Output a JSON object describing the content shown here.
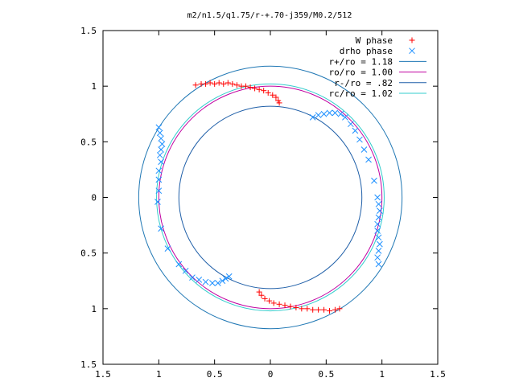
{
  "chart_data": {
    "type": "scatter",
    "title": "m2/n1.5/q1.75/r-+.70-j359/M0.2/512",
    "xlim": [
      -1.5,
      1.5
    ],
    "ylim": [
      -1.5,
      1.5
    ],
    "x_ticks": [
      -1.5,
      -1,
      -0.5,
      0,
      0.5,
      1,
      1.5
    ],
    "y_ticks": [
      -1.5,
      -1,
      -0.5,
      0,
      0.5,
      1,
      1.5
    ],
    "x_tick_labels": [
      "1.5",
      "1",
      "0.5",
      "0",
      "0.5",
      "1",
      "1.5"
    ],
    "y_tick_labels": [
      "1.5",
      "1",
      "0.5",
      "0",
      "0.5",
      "1",
      "1.5"
    ],
    "grid": false,
    "legend_position": "top-right",
    "series": [
      {
        "name": "W phase",
        "marker": "+",
        "color": "#ff0000",
        "points": [
          [
            -0.67,
            1.01
          ],
          [
            -0.62,
            1.02
          ],
          [
            -0.58,
            1.02
          ],
          [
            -0.54,
            1.03
          ],
          [
            -0.5,
            1.02
          ],
          [
            -0.46,
            1.03
          ],
          [
            -0.42,
            1.02
          ],
          [
            -0.38,
            1.03
          ],
          [
            -0.34,
            1.02
          ],
          [
            -0.3,
            1.01
          ],
          [
            -0.26,
            1.0
          ],
          [
            -0.22,
            1.0
          ],
          [
            -0.18,
            0.99
          ],
          [
            -0.14,
            0.98
          ],
          [
            -0.1,
            0.97
          ],
          [
            -0.06,
            0.96
          ],
          [
            -0.02,
            0.94
          ],
          [
            0.02,
            0.92
          ],
          [
            0.05,
            0.9
          ],
          [
            0.07,
            0.87
          ],
          [
            0.08,
            0.85
          ],
          [
            -0.1,
            -0.85
          ],
          [
            -0.08,
            -0.88
          ],
          [
            -0.05,
            -0.91
          ],
          [
            -0.01,
            -0.93
          ],
          [
            0.03,
            -0.95
          ],
          [
            0.08,
            -0.96
          ],
          [
            0.13,
            -0.97
          ],
          [
            0.18,
            -0.98
          ],
          [
            0.23,
            -0.99
          ],
          [
            0.28,
            -1.0
          ],
          [
            0.33,
            -1.0
          ],
          [
            0.38,
            -1.01
          ],
          [
            0.43,
            -1.01
          ],
          [
            0.48,
            -1.01
          ],
          [
            0.53,
            -1.02
          ],
          [
            0.58,
            -1.01
          ],
          [
            0.62,
            -1.0
          ]
        ]
      },
      {
        "name": "drho phase",
        "marker": "x",
        "color": "#1e90ff",
        "points": [
          [
            0.38,
            0.72
          ],
          [
            0.43,
            0.74
          ],
          [
            0.48,
            0.75
          ],
          [
            0.53,
            0.76
          ],
          [
            0.58,
            0.76
          ],
          [
            0.63,
            0.75
          ],
          [
            0.67,
            0.72
          ],
          [
            0.72,
            0.66
          ],
          [
            0.76,
            0.6
          ],
          [
            0.8,
            0.52
          ],
          [
            0.84,
            0.43
          ],
          [
            0.88,
            0.34
          ],
          [
            0.93,
            0.15
          ],
          [
            0.96,
            0.0
          ],
          [
            0.97,
            -0.06
          ],
          [
            0.98,
            -0.12
          ],
          [
            0.97,
            -0.18
          ],
          [
            0.96,
            -0.24
          ],
          [
            0.96,
            -0.3
          ],
          [
            0.97,
            -0.36
          ],
          [
            0.98,
            -0.42
          ],
          [
            0.97,
            -0.48
          ],
          [
            0.96,
            -0.54
          ],
          [
            0.97,
            -0.6
          ],
          [
            -1.0,
            0.63
          ],
          [
            -0.99,
            0.58
          ],
          [
            -0.98,
            0.53
          ],
          [
            -0.97,
            0.48
          ],
          [
            -0.98,
            0.43
          ],
          [
            -0.99,
            0.38
          ],
          [
            -0.98,
            0.32
          ],
          [
            -1.0,
            0.24
          ],
          [
            -1.0,
            0.16
          ],
          [
            -1.0,
            0.06
          ],
          [
            -1.01,
            -0.04
          ],
          [
            -0.98,
            -0.28
          ],
          [
            -0.92,
            -0.46
          ],
          [
            -0.82,
            -0.6
          ],
          [
            -0.76,
            -0.66
          ],
          [
            -0.7,
            -0.72
          ],
          [
            -0.64,
            -0.74
          ],
          [
            -0.58,
            -0.76
          ],
          [
            -0.52,
            -0.77
          ],
          [
            -0.47,
            -0.77
          ],
          [
            -0.43,
            -0.75
          ],
          [
            -0.4,
            -0.73
          ],
          [
            -0.37,
            -0.71
          ]
        ]
      }
    ],
    "circles": [
      {
        "name": "r+/ro = 1.18",
        "radius": 1.18,
        "color": "#1f77b4"
      },
      {
        "name": "ro/ro = 1.00",
        "radius": 1.0,
        "color": "#c000a0"
      },
      {
        "name": "r-/ro = .82",
        "radius": 0.82,
        "color": "#1f5fa8"
      },
      {
        "name": "rc/ro = 1.02",
        "radius": 1.02,
        "color": "#33cccc"
      }
    ]
  }
}
